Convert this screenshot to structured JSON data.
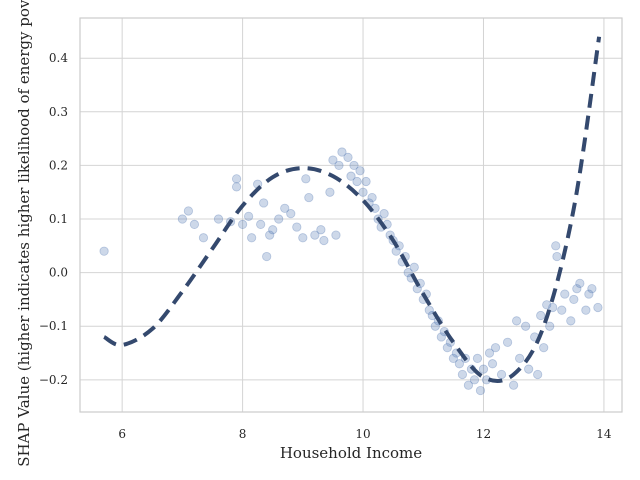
{
  "chart_data": {
    "type": "scatter",
    "title": "",
    "xlabel": "Household Income",
    "ylabel": "SHAP Value (higher indicates higher likelihood of energy poverty)",
    "xlim": [
      5.3,
      14.3
    ],
    "ylim": [
      -0.26,
      0.475
    ],
    "x_ticks": [
      6,
      8,
      10,
      12,
      14
    ],
    "y_ticks": [
      -0.2,
      -0.1,
      0.0,
      0.1,
      0.2,
      0.3,
      0.4
    ],
    "y_tick_labels": [
      "−0.2",
      "−0.1",
      "0.0",
      "0.1",
      "0.2",
      "0.3",
      "0.4"
    ],
    "grid": true,
    "legend": "none",
    "colors": {
      "points": "#4c72b0",
      "trend": "#34496e",
      "grid": "#d4d4d4",
      "frame": "#cccccc"
    },
    "scatter_series": {
      "name": "",
      "points": [
        [
          5.7,
          0.04
        ],
        [
          7.0,
          0.1
        ],
        [
          7.1,
          0.115
        ],
        [
          7.2,
          0.09
        ],
        [
          7.35,
          0.065
        ],
        [
          7.6,
          0.1
        ],
        [
          7.8,
          0.095
        ],
        [
          7.9,
          0.175
        ],
        [
          7.9,
          0.16
        ],
        [
          8.0,
          0.09
        ],
        [
          8.1,
          0.105
        ],
        [
          8.15,
          0.065
        ],
        [
          8.25,
          0.165
        ],
        [
          8.3,
          0.09
        ],
        [
          8.35,
          0.13
        ],
        [
          8.4,
          0.03
        ],
        [
          8.45,
          0.07
        ],
        [
          8.5,
          0.08
        ],
        [
          8.6,
          0.1
        ],
        [
          8.7,
          0.12
        ],
        [
          8.8,
          0.11
        ],
        [
          8.9,
          0.085
        ],
        [
          9.0,
          0.065
        ],
        [
          9.05,
          0.175
        ],
        [
          9.1,
          0.14
        ],
        [
          9.2,
          0.07
        ],
        [
          9.3,
          0.08
        ],
        [
          9.35,
          0.06
        ],
        [
          9.45,
          0.15
        ],
        [
          9.5,
          0.21
        ],
        [
          9.55,
          0.07
        ],
        [
          9.6,
          0.2
        ],
        [
          9.65,
          0.225
        ],
        [
          9.75,
          0.215
        ],
        [
          9.8,
          0.18
        ],
        [
          9.85,
          0.2
        ],
        [
          9.9,
          0.17
        ],
        [
          9.95,
          0.19
        ],
        [
          10.0,
          0.15
        ],
        [
          10.05,
          0.17
        ],
        [
          10.1,
          0.13
        ],
        [
          10.15,
          0.14
        ],
        [
          10.2,
          0.12
        ],
        [
          10.25,
          0.1
        ],
        [
          10.3,
          0.085
        ],
        [
          10.35,
          0.11
        ],
        [
          10.4,
          0.09
        ],
        [
          10.45,
          0.07
        ],
        [
          10.5,
          0.06
        ],
        [
          10.55,
          0.04
        ],
        [
          10.6,
          0.05
        ],
        [
          10.65,
          0.02
        ],
        [
          10.7,
          0.03
        ],
        [
          10.75,
          0.0
        ],
        [
          10.8,
          -0.01
        ],
        [
          10.85,
          0.01
        ],
        [
          10.9,
          -0.03
        ],
        [
          10.95,
          -0.02
        ],
        [
          11.0,
          -0.05
        ],
        [
          11.05,
          -0.04
        ],
        [
          11.1,
          -0.07
        ],
        [
          11.15,
          -0.08
        ],
        [
          11.2,
          -0.1
        ],
        [
          11.25,
          -0.09
        ],
        [
          11.3,
          -0.12
        ],
        [
          11.35,
          -0.11
        ],
        [
          11.4,
          -0.14
        ],
        [
          11.45,
          -0.13
        ],
        [
          11.5,
          -0.16
        ],
        [
          11.55,
          -0.15
        ],
        [
          11.6,
          -0.17
        ],
        [
          11.65,
          -0.19
        ],
        [
          11.7,
          -0.16
        ],
        [
          11.75,
          -0.21
        ],
        [
          11.8,
          -0.18
        ],
        [
          11.85,
          -0.2
        ],
        [
          11.9,
          -0.16
        ],
        [
          11.95,
          -0.22
        ],
        [
          12.0,
          -0.18
        ],
        [
          12.05,
          -0.2
        ],
        [
          12.1,
          -0.15
        ],
        [
          12.15,
          -0.17
        ],
        [
          12.2,
          -0.14
        ],
        [
          12.3,
          -0.19
        ],
        [
          12.4,
          -0.13
        ],
        [
          12.5,
          -0.21
        ],
        [
          12.55,
          -0.09
        ],
        [
          12.6,
          -0.16
        ],
        [
          12.7,
          -0.1
        ],
        [
          12.75,
          -0.18
        ],
        [
          12.85,
          -0.12
        ],
        [
          12.9,
          -0.19
        ],
        [
          12.95,
          -0.08
        ],
        [
          13.0,
          -0.14
        ],
        [
          13.05,
          -0.06
        ],
        [
          13.1,
          -0.1
        ],
        [
          13.15,
          -0.065
        ],
        [
          13.2,
          0.05
        ],
        [
          13.22,
          0.03
        ],
        [
          13.3,
          -0.07
        ],
        [
          13.35,
          -0.04
        ],
        [
          13.45,
          -0.09
        ],
        [
          13.5,
          -0.05
        ],
        [
          13.55,
          -0.03
        ],
        [
          13.6,
          -0.02
        ],
        [
          13.7,
          -0.07
        ],
        [
          13.75,
          -0.04
        ],
        [
          13.8,
          -0.03
        ],
        [
          13.9,
          -0.065
        ]
      ]
    },
    "trend_series": {
      "name": "",
      "style": "dashed",
      "x": [
        5.7,
        6.0,
        6.5,
        7.0,
        7.5,
        8.0,
        8.5,
        9.0,
        9.5,
        10.0,
        10.5,
        11.0,
        11.5,
        12.0,
        12.5,
        13.0,
        13.5,
        13.92
      ],
      "y": [
        -0.12,
        -0.135,
        -0.105,
        -0.035,
        0.045,
        0.125,
        0.178,
        0.195,
        0.18,
        0.135,
        0.06,
        -0.04,
        -0.13,
        -0.195,
        -0.19,
        -0.1,
        0.12,
        0.44
      ]
    }
  }
}
